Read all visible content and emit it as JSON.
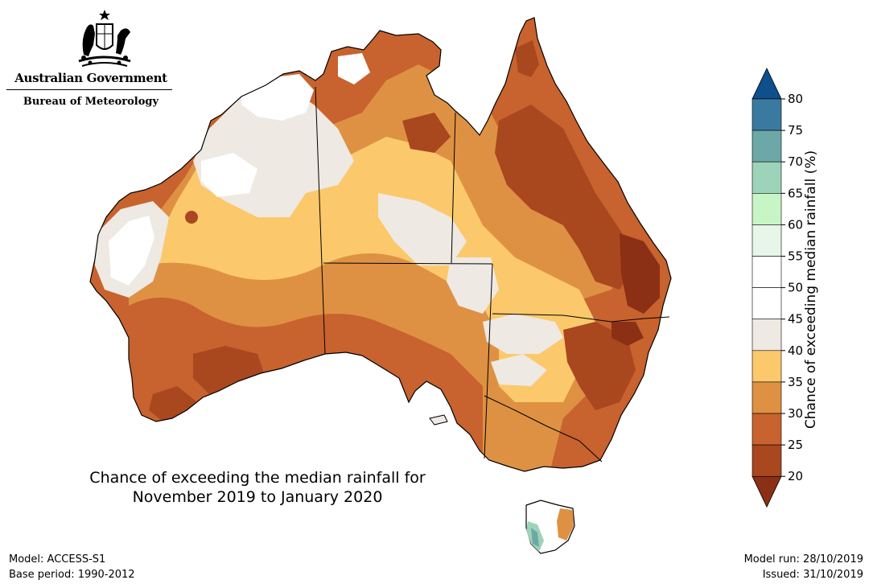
{
  "logo": {
    "government": "Australian Government",
    "agency": "Bureau of Meteorology",
    "crest_icon": "coat-of-arms-icon"
  },
  "map": {
    "title_line1": "Chance of exceeding the median rainfall for",
    "title_line2": "November 2019 to January 2020",
    "region": "Australia",
    "dominant_category": "20-35% (below median)"
  },
  "colorbar": {
    "label": "Chance of exceeding median rainfall (%)",
    "ticks": [
      "20",
      "25",
      "30",
      "35",
      "40",
      "45",
      "50",
      "55",
      "60",
      "65",
      "70",
      "75",
      "80"
    ],
    "bins": [
      {
        "range": "<20",
        "color": "#8b3014"
      },
      {
        "range": "20-25",
        "color": "#a9471f"
      },
      {
        "range": "25-30",
        "color": "#c8622e"
      },
      {
        "range": "30-35",
        "color": "#de9143"
      },
      {
        "range": "35-40",
        "color": "#fbc96b"
      },
      {
        "range": "40-45",
        "color": "#eee9e3"
      },
      {
        "range": "45-50",
        "color": "#ffffff"
      },
      {
        "range": "50-55",
        "color": "#ffffff"
      },
      {
        "range": "55-60",
        "color": "#e8f5e9"
      },
      {
        "range": "60-65",
        "color": "#c8f5c6"
      },
      {
        "range": "65-70",
        "color": "#9dd3b8"
      },
      {
        "range": "70-75",
        "color": "#6da8a8"
      },
      {
        "range": "75-80",
        "color": "#3b7aa0"
      },
      {
        "range": ">80",
        "color": "#0e4f8c"
      }
    ]
  },
  "footer": {
    "model": "Model: ACCESS-S1",
    "base_period": "Base period: 1990-2012",
    "model_run": "Model run: 28/10/2019",
    "issued": "Issued: 31/10/2019"
  }
}
